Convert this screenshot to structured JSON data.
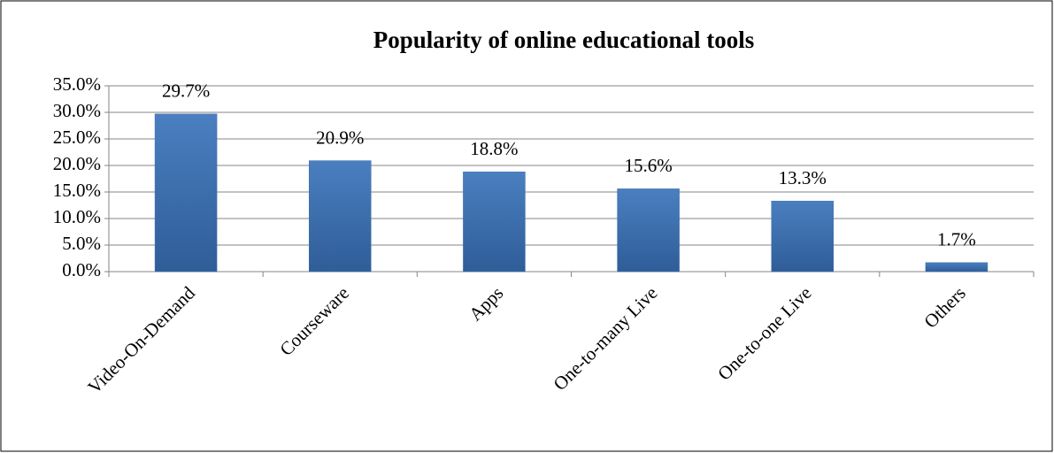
{
  "chart_data": {
    "type": "bar",
    "title": "Popularity of online educational tools",
    "categories": [
      "Video-On-Demand",
      "Courseware",
      "Apps",
      "One-to-many Live",
      "One-to-one Live",
      "Others"
    ],
    "values": [
      29.7,
      20.9,
      18.8,
      15.6,
      13.3,
      1.7
    ],
    "value_labels": [
      "29.7%",
      "20.9%",
      "18.8%",
      "15.6%",
      "13.3%",
      "1.7%"
    ],
    "color": "#3d6fad",
    "ylim": [
      0,
      35
    ],
    "yticks": [
      {
        "value": 0,
        "label": "0.0%"
      },
      {
        "value": 5,
        "label": "5.0%"
      },
      {
        "value": 10,
        "label": "10.0%"
      },
      {
        "value": 15,
        "label": "15.0%"
      },
      {
        "value": 20,
        "label": "20.0%"
      },
      {
        "value": 25,
        "label": "25.0%"
      },
      {
        "value": 30,
        "label": "30.0%"
      },
      {
        "value": 35,
        "label": "35.0%"
      }
    ],
    "grid": true
  }
}
